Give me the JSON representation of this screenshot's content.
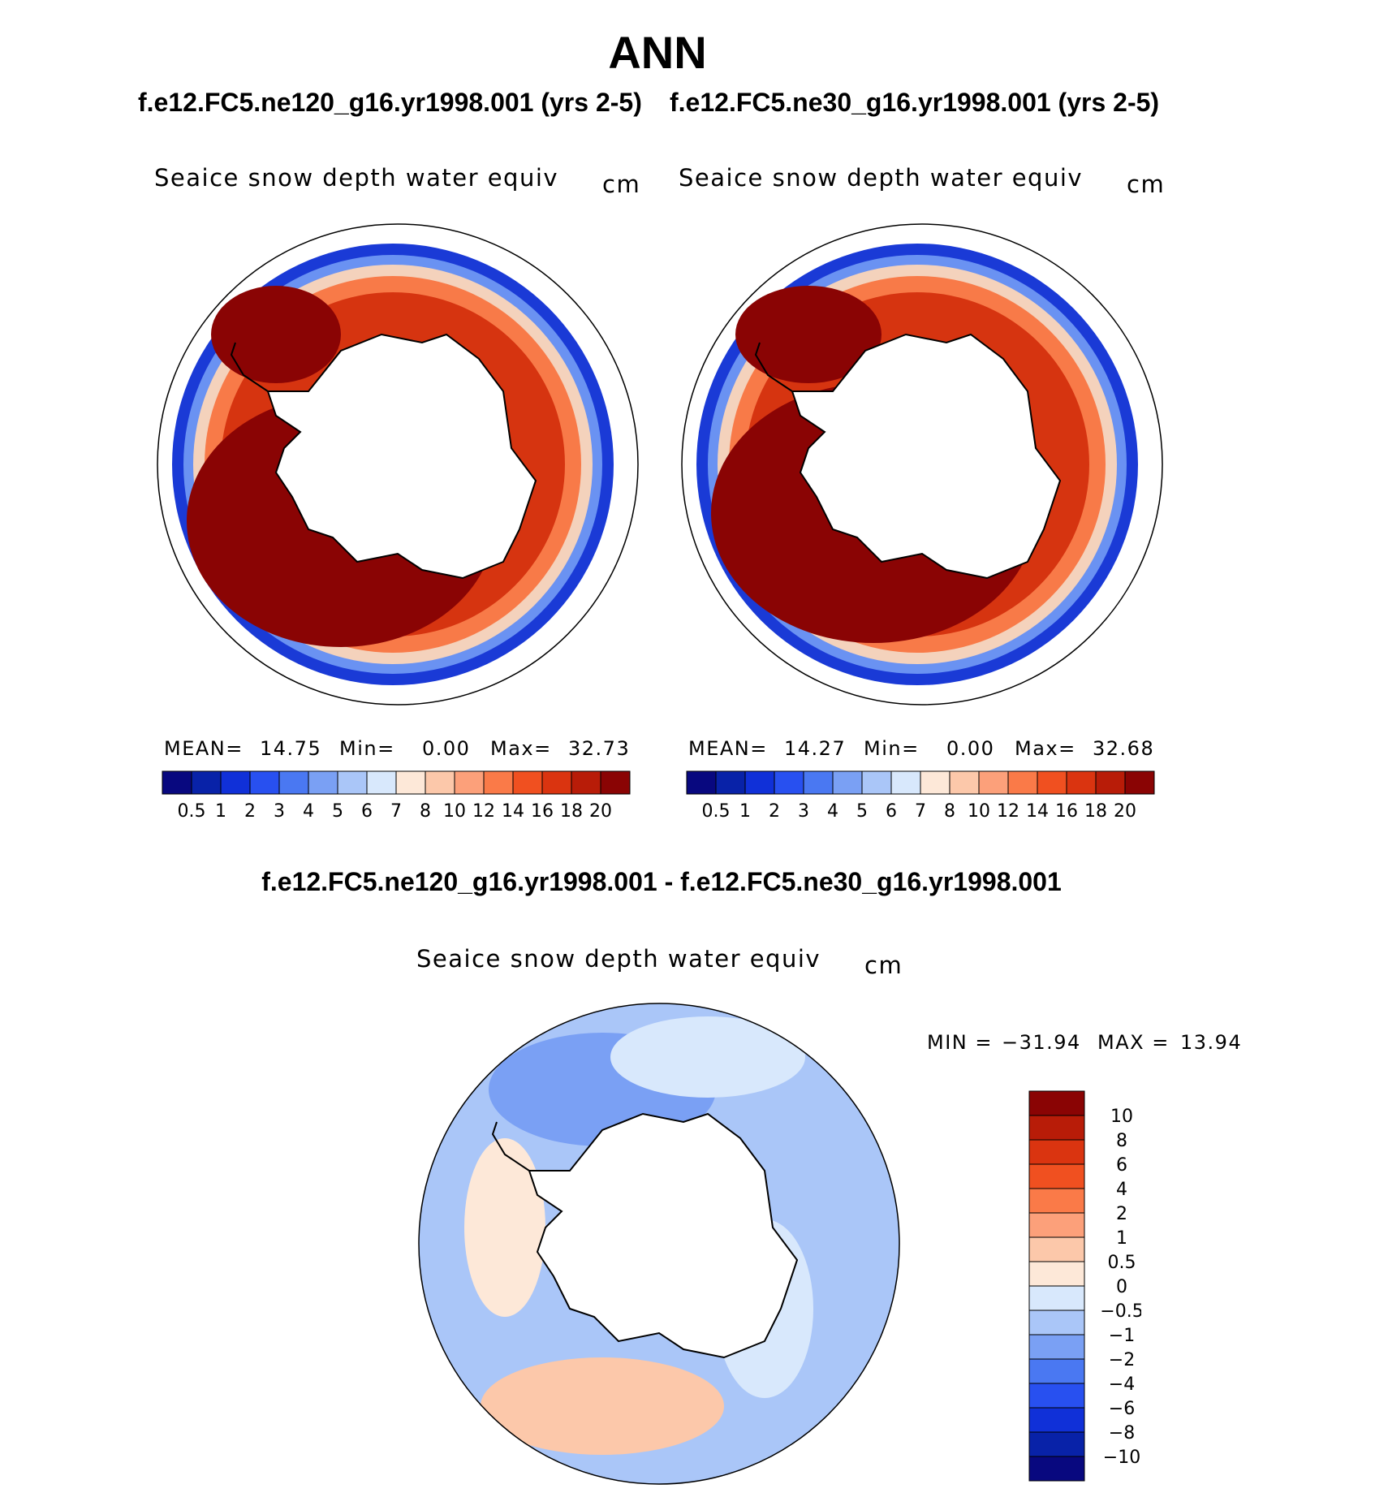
{
  "title": "ANN",
  "panels": [
    {
      "case_title": "f.e12.FC5.ne120_g16.yr1998.001 (yrs 2-5)",
      "variable": "Seaice snow depth water equiv",
      "units": "cm",
      "stats": {
        "mean_label": "MEAN=",
        "mean": "14.75",
        "min_label": "Min=",
        "min": "0.00",
        "max_label": "Max=",
        "max": "32.73"
      }
    },
    {
      "case_title": "f.e12.FC5.ne30_g16.yr1998.001 (yrs 2-5)",
      "variable": "Seaice snow depth water equiv",
      "units": "cm",
      "stats": {
        "mean_label": "MEAN=",
        "mean": "14.27",
        "min_label": "Min=",
        "min": "0.00",
        "max_label": "Max=",
        "max": "32.68"
      }
    }
  ],
  "colorbar": {
    "labels": [
      "0.5",
      "1",
      "2",
      "3",
      "4",
      "5",
      "6",
      "7",
      "8",
      "10",
      "12",
      "14",
      "16",
      "18",
      "20"
    ],
    "colors": [
      "#08087f",
      "#0822a8",
      "#1030d8",
      "#2850f0",
      "#4a78f2",
      "#7aa0f4",
      "#aac6f8",
      "#d8e8fc",
      "#fde8d8",
      "#fcc8aa",
      "#fca07a",
      "#fa7a48",
      "#f05020",
      "#da3410",
      "#b81c08",
      "#8a0404"
    ]
  },
  "diff": {
    "title": "f.e12.FC5.ne120_g16.yr1998.001 - f.e12.FC5.ne30_g16.yr1998.001",
    "variable": "Seaice snow depth water equiv",
    "units": "cm",
    "min_label": "MIN =",
    "min": "−31.94",
    "max_label": "MAX =",
    "max": "13.94",
    "colorbar_labels": [
      "10",
      "8",
      "6",
      "4",
      "2",
      "1",
      "0.5",
      "0",
      "−0.5",
      "−1",
      "−2",
      "−4",
      "−6",
      "−8",
      "−10"
    ],
    "colorbar_colors": [
      "#8a0404",
      "#b81c08",
      "#da3410",
      "#f05020",
      "#fa7a48",
      "#fca07a",
      "#fcc8aa",
      "#fde8d8",
      "#d8e8fc",
      "#aac6f8",
      "#7aa0f4",
      "#4a78f2",
      "#2850f0",
      "#1030d8",
      "#0822a8",
      "#08087f"
    ]
  },
  "chart_data": [
    {
      "type": "heatmap",
      "title": "f.e12.FC5.ne120_g16.yr1998.001 (yrs 2-5)",
      "subtitle": "Seaice snow depth water equiv",
      "units": "cm",
      "projection": "south polar stereographic",
      "levels": [
        0.5,
        1,
        2,
        3,
        4,
        5,
        6,
        7,
        8,
        10,
        12,
        14,
        16,
        18,
        20
      ],
      "mean": 14.75,
      "min": 0.0,
      "max": 32.73
    },
    {
      "type": "heatmap",
      "title": "f.e12.FC5.ne30_g16.yr1998.001 (yrs 2-5)",
      "subtitle": "Seaice snow depth water equiv",
      "units": "cm",
      "projection": "south polar stereographic",
      "levels": [
        0.5,
        1,
        2,
        3,
        4,
        5,
        6,
        7,
        8,
        10,
        12,
        14,
        16,
        18,
        20
      ],
      "mean": 14.27,
      "min": 0.0,
      "max": 32.68
    },
    {
      "type": "heatmap",
      "title": "f.e12.FC5.ne120_g16.yr1998.001 - f.e12.FC5.ne30_g16.yr1998.001",
      "subtitle": "Seaice snow depth water equiv",
      "units": "cm",
      "projection": "south polar stereographic",
      "levels": [
        -10,
        -8,
        -6,
        -4,
        -2,
        -1,
        -0.5,
        0,
        0.5,
        1,
        2,
        4,
        6,
        8,
        10
      ],
      "min": -31.94,
      "max": 13.94
    }
  ]
}
